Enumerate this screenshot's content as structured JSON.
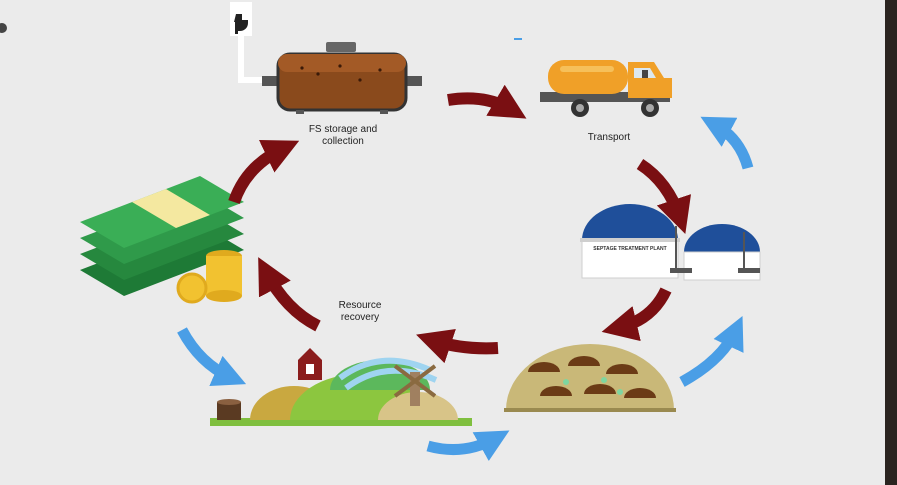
{
  "diagram": {
    "labels": {
      "storage": "FS storage and collection",
      "transport": "Transport",
      "plant_sign": "SEPTAGE TREATMENT PLANT",
      "resource": "Resource recovery"
    },
    "colors": {
      "background": "#ebebeb",
      "dark_arrow": "#7a0f12",
      "blue_arrow": "#4a9ee6",
      "tank": "#8a4a1c",
      "truck": "#f0a028",
      "money": "#2f9a4a",
      "coin": "#f2c230",
      "soil": "#c9b878"
    },
    "icons": [
      "toilet-icon",
      "storage-tank-icon",
      "truck-icon",
      "treatment-plant-icon",
      "compost-piles-icon",
      "farm-icon",
      "money-icon"
    ]
  }
}
